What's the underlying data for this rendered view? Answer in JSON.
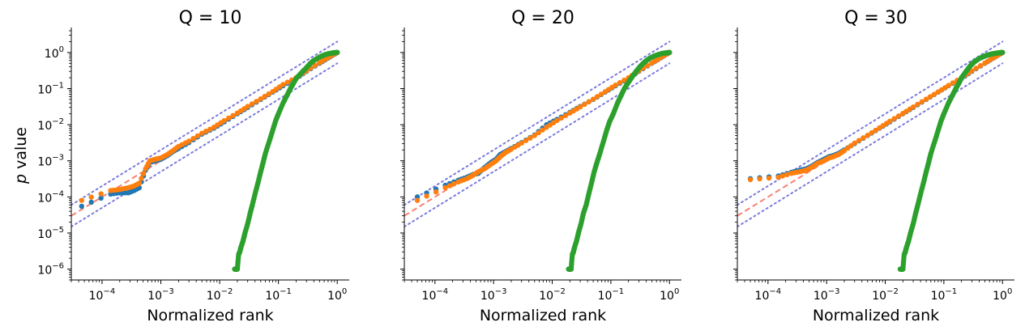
{
  "figure": {
    "ylabel_prefix": "p",
    "ylabel_suffix": " value"
  },
  "colors": {
    "series_blue": "#1f77b4",
    "series_orange": "#ff7f0e",
    "series_green": "#2ca02c",
    "reference_line": "#fa8072",
    "confidence_band": "#7b7bdc"
  },
  "chart_data": [
    {
      "type": "scatter",
      "title": "Q = 10",
      "xlabel": "Normalized rank",
      "ylabel": "p value",
      "xscale": "log",
      "yscale": "log",
      "xlim": [
        3e-05,
        1.6
      ],
      "ylim": [
        5e-07,
        4
      ],
      "xticks": [
        {
          "base": "10",
          "exp": "−4",
          "value": 0.0001
        },
        {
          "base": "10",
          "exp": "−3",
          "value": 0.001
        },
        {
          "base": "10",
          "exp": "−2",
          "value": 0.01
        },
        {
          "base": "10",
          "exp": "−1",
          "value": 0.1
        },
        {
          "base": "10",
          "exp": "0",
          "value": 1
        }
      ],
      "yticks": [
        {
          "base": "10",
          "exp": "−6",
          "value": 1e-06
        },
        {
          "base": "10",
          "exp": "−5",
          "value": 1e-05
        },
        {
          "base": "10",
          "exp": "−4",
          "value": 0.0001
        },
        {
          "base": "10",
          "exp": "−3",
          "value": 0.001
        },
        {
          "base": "10",
          "exp": "−2",
          "value": 0.01
        },
        {
          "base": "10",
          "exp": "−1",
          "value": 0.1
        },
        {
          "base": "10",
          "exp": "0",
          "value": 1
        }
      ],
      "reference_line": {
        "x": [
          3e-05,
          1.0
        ],
        "y": [
          3e-05,
          1.0
        ]
      },
      "confidence_bands": [
        {
          "x": [
            3e-05,
            1.0
          ],
          "y": [
            6e-05,
            2.0
          ]
        },
        {
          "x": [
            3e-05,
            1.0
          ],
          "y": [
            1.5e-05,
            0.5
          ]
        }
      ],
      "series": [
        {
          "color_key": "series_blue",
          "x": [
            4.5e-05,
            0.00014,
            0.0002,
            0.00028,
            0.00035,
            0.00043,
            0.00055,
            0.00065,
            0.0008,
            0.001,
            0.0013,
            0.0016,
            0.002,
            0.003,
            0.005,
            0.008,
            0.012,
            0.02,
            0.03,
            0.05,
            0.08,
            0.12,
            0.2,
            0.3,
            0.5,
            0.7,
            0.9,
            1.0
          ],
          "y": [
            5.5e-05,
            0.00012,
            0.00013,
            0.00013,
            0.00015,
            0.00018,
            0.00055,
            0.0009,
            0.001,
            0.0011,
            0.0014,
            0.0018,
            0.0022,
            0.0032,
            0.0055,
            0.008,
            0.012,
            0.02,
            0.03,
            0.05,
            0.08,
            0.12,
            0.19,
            0.3,
            0.5,
            0.7,
            0.9,
            1.0
          ]
        },
        {
          "color_key": "series_orange",
          "x": [
            4.5e-05,
            0.00014,
            0.0002,
            0.00028,
            0.00035,
            0.00043,
            0.00055,
            0.00065,
            0.0008,
            0.001,
            0.0013,
            0.0016,
            0.002,
            0.003,
            0.005,
            0.008,
            0.012,
            0.02,
            0.03,
            0.05,
            0.08,
            0.12,
            0.2,
            0.3,
            0.5,
            0.7,
            0.9,
            1.0
          ],
          "y": [
            8e-05,
            0.00015,
            0.00016,
            0.00018,
            0.0002,
            0.00024,
            0.0006,
            0.001,
            0.0011,
            0.0012,
            0.0015,
            0.0019,
            0.0025,
            0.0035,
            0.0058,
            0.0085,
            0.013,
            0.021,
            0.032,
            0.052,
            0.083,
            0.13,
            0.2,
            0.31,
            0.52,
            0.72,
            0.92,
            1.0
          ]
        },
        {
          "color_key": "series_green",
          "x": [
            0.018,
            0.019,
            0.02,
            0.021,
            0.022,
            0.023,
            0.025,
            0.027,
            0.03,
            0.033,
            0.036,
            0.04,
            0.045,
            0.05,
            0.055,
            0.06,
            0.07,
            0.08,
            0.09,
            0.1,
            0.12,
            0.14,
            0.16,
            0.18,
            0.2,
            0.25,
            0.3,
            0.35,
            0.4,
            0.5,
            0.6,
            0.7,
            0.8,
            0.9,
            1.0
          ],
          "y": [
            1e-06,
            1e-06,
            1e-06,
            2.5e-06,
            3e-06,
            4e-06,
            6e-06,
            1e-05,
            1.8e-05,
            3.5e-05,
            6e-05,
            0.00012,
            0.00025,
            0.0005,
            0.0009,
            0.0016,
            0.0035,
            0.007,
            0.013,
            0.02,
            0.04,
            0.065,
            0.1,
            0.14,
            0.19,
            0.28,
            0.38,
            0.5,
            0.6,
            0.75,
            0.85,
            0.92,
            0.96,
            0.99,
            1.0
          ]
        }
      ]
    },
    {
      "type": "scatter",
      "title": "Q = 20",
      "xlabel": "Normalized rank",
      "ylabel": "",
      "xscale": "log",
      "yscale": "log",
      "xlim": [
        3e-05,
        1.6
      ],
      "ylim": [
        5e-07,
        4
      ],
      "xticks": [
        {
          "base": "10",
          "exp": "−4",
          "value": 0.0001
        },
        {
          "base": "10",
          "exp": "−3",
          "value": 0.001
        },
        {
          "base": "10",
          "exp": "−2",
          "value": 0.01
        },
        {
          "base": "10",
          "exp": "−1",
          "value": 0.1
        },
        {
          "base": "10",
          "exp": "0",
          "value": 1
        }
      ],
      "yticks": [],
      "reference_line": {
        "x": [
          3e-05,
          1.0
        ],
        "y": [
          3e-05,
          1.0
        ]
      },
      "confidence_bands": [
        {
          "x": [
            3e-05,
            1.0
          ],
          "y": [
            6e-05,
            2.0
          ]
        },
        {
          "x": [
            3e-05,
            1.0
          ],
          "y": [
            1.5e-05,
            0.5
          ]
        }
      ],
      "series": [
        {
          "color_key": "series_blue",
          "x": [
            5e-05,
            0.00015,
            0.00025,
            0.00035,
            0.00045,
            0.00055,
            0.0007,
            0.0009,
            0.0011,
            0.0013,
            0.0016,
            0.002,
            0.003,
            0.005,
            0.008,
            0.012,
            0.02,
            0.03,
            0.05,
            0.08,
            0.12,
            0.2,
            0.3,
            0.5,
            0.7,
            0.9,
            1.0
          ],
          "y": [
            0.0001,
            0.00021,
            0.00029,
            0.00035,
            0.00042,
            0.00045,
            0.00065,
            0.0009,
            0.0011,
            0.0015,
            0.0018,
            0.0022,
            0.0032,
            0.0052,
            0.01,
            0.014,
            0.022,
            0.032,
            0.05,
            0.08,
            0.12,
            0.19,
            0.3,
            0.5,
            0.7,
            0.9,
            1.0
          ]
        },
        {
          "color_key": "series_orange",
          "x": [
            5e-05,
            0.00015,
            0.00025,
            0.00035,
            0.00045,
            0.00055,
            0.0007,
            0.0009,
            0.0011,
            0.0013,
            0.0016,
            0.002,
            0.003,
            0.005,
            0.008,
            0.012,
            0.02,
            0.03,
            0.05,
            0.08,
            0.12,
            0.2,
            0.3,
            0.5,
            0.7,
            0.9,
            1.0
          ],
          "y": [
            8e-05,
            0.00018,
            0.00026,
            0.00032,
            0.0004,
            0.0005,
            0.0006,
            0.0008,
            0.001,
            0.0013,
            0.0017,
            0.0021,
            0.0031,
            0.005,
            0.0085,
            0.013,
            0.021,
            0.031,
            0.051,
            0.082,
            0.125,
            0.2,
            0.31,
            0.51,
            0.71,
            0.91,
            1.0
          ]
        },
        {
          "color_key": "series_green",
          "x": [
            0.019,
            0.02,
            0.021,
            0.022,
            0.023,
            0.024,
            0.026,
            0.028,
            0.031,
            0.034,
            0.038,
            0.042,
            0.047,
            0.052,
            0.058,
            0.065,
            0.075,
            0.085,
            0.095,
            0.11,
            0.13,
            0.15,
            0.17,
            0.2,
            0.23,
            0.27,
            0.32,
            0.38,
            0.45,
            0.55,
            0.65,
            0.75,
            0.85,
            0.95,
            1.0
          ],
          "y": [
            1e-06,
            1e-06,
            1e-06,
            2.5e-06,
            3e-06,
            4e-06,
            6e-06,
            1e-05,
            1.8e-05,
            3.5e-05,
            6e-05,
            0.00012,
            0.00025,
            0.0005,
            0.0009,
            0.0016,
            0.0035,
            0.007,
            0.012,
            0.02,
            0.04,
            0.065,
            0.1,
            0.15,
            0.21,
            0.3,
            0.42,
            0.55,
            0.68,
            0.8,
            0.88,
            0.94,
            0.97,
            0.99,
            1.0
          ]
        }
      ]
    },
    {
      "type": "scatter",
      "title": "Q = 30",
      "xlabel": "Normalized rank",
      "ylabel": "",
      "xscale": "log",
      "yscale": "log",
      "xlim": [
        3e-05,
        1.6
      ],
      "ylim": [
        5e-07,
        4
      ],
      "xticks": [
        {
          "base": "10",
          "exp": "−4",
          "value": 0.0001
        },
        {
          "base": "10",
          "exp": "−3",
          "value": 0.001
        },
        {
          "base": "10",
          "exp": "−2",
          "value": 0.01
        },
        {
          "base": "10",
          "exp": "−1",
          "value": 0.1
        },
        {
          "base": "10",
          "exp": "0",
          "value": 1
        }
      ],
      "yticks": [],
      "reference_line": {
        "x": [
          3e-05,
          1.0
        ],
        "y": [
          3e-05,
          1.0
        ]
      },
      "confidence_bands": [
        {
          "x": [
            3e-05,
            1.0
          ],
          "y": [
            6e-05,
            2.0
          ]
        },
        {
          "x": [
            3e-05,
            1.0
          ],
          "y": [
            1.5e-05,
            0.5
          ]
        }
      ],
      "series": [
        {
          "color_key": "series_blue",
          "x": [
            5e-05,
            0.00015,
            0.00025,
            0.00035,
            0.00045,
            0.00055,
            0.0007,
            0.0009,
            0.0011,
            0.0013,
            0.0016,
            0.002,
            0.003,
            0.005,
            0.008,
            0.012,
            0.02,
            0.03,
            0.05,
            0.08,
            0.12,
            0.2,
            0.3,
            0.5,
            0.7,
            0.9,
            1.0
          ],
          "y": [
            0.00032,
            0.00038,
            0.00048,
            0.00055,
            0.0006,
            0.0007,
            0.0009,
            0.0011,
            0.0013,
            0.0014,
            0.0016,
            0.002,
            0.003,
            0.005,
            0.008,
            0.012,
            0.02,
            0.03,
            0.05,
            0.08,
            0.12,
            0.19,
            0.3,
            0.5,
            0.7,
            0.9,
            1.0
          ]
        },
        {
          "color_key": "series_orange",
          "x": [
            5e-05,
            0.00015,
            0.00025,
            0.00035,
            0.00045,
            0.00055,
            0.0007,
            0.0009,
            0.0011,
            0.0013,
            0.0016,
            0.002,
            0.003,
            0.005,
            0.008,
            0.012,
            0.02,
            0.03,
            0.05,
            0.08,
            0.12,
            0.2,
            0.3,
            0.5,
            0.7,
            0.9,
            1.0
          ],
          "y": [
            0.0003,
            0.00035,
            0.00045,
            0.0005,
            0.00055,
            0.00065,
            0.00085,
            0.001,
            0.0012,
            0.0013,
            0.0015,
            0.0019,
            0.0031,
            0.0051,
            0.0082,
            0.0125,
            0.0205,
            0.031,
            0.051,
            0.081,
            0.122,
            0.2,
            0.31,
            0.51,
            0.71,
            0.91,
            1.0
          ]
        },
        {
          "color_key": "series_green",
          "x": [
            0.018,
            0.019,
            0.02,
            0.021,
            0.022,
            0.023,
            0.025,
            0.027,
            0.03,
            0.033,
            0.036,
            0.04,
            0.045,
            0.05,
            0.055,
            0.06,
            0.07,
            0.08,
            0.09,
            0.1,
            0.12,
            0.14,
            0.16,
            0.18,
            0.2,
            0.24,
            0.28,
            0.33,
            0.4,
            0.5,
            0.6,
            0.7,
            0.8,
            0.9,
            1.0
          ],
          "y": [
            1e-06,
            1e-06,
            1e-06,
            2.5e-06,
            3e-06,
            4e-06,
            6e-06,
            1e-05,
            1.8e-05,
            3.5e-05,
            6e-05,
            0.00012,
            0.00025,
            0.0005,
            0.0009,
            0.0016,
            0.0035,
            0.007,
            0.013,
            0.02,
            0.04,
            0.065,
            0.1,
            0.14,
            0.2,
            0.3,
            0.42,
            0.55,
            0.68,
            0.8,
            0.88,
            0.93,
            0.96,
            0.99,
            1.0
          ]
        }
      ]
    }
  ]
}
